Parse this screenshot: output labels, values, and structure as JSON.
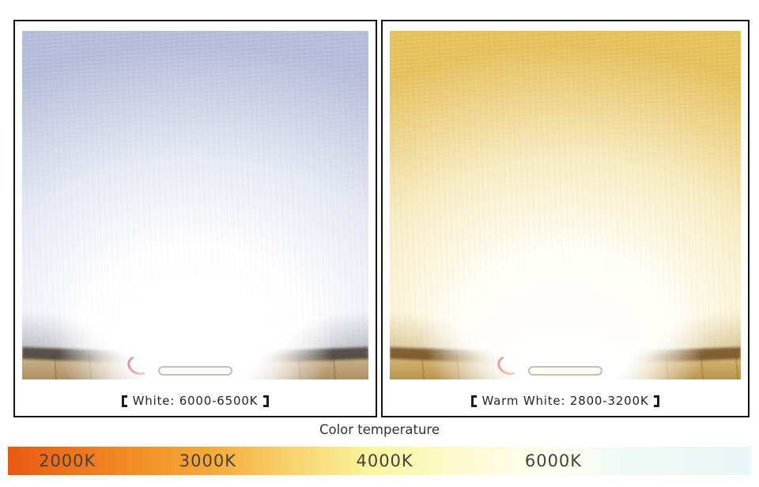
{
  "page": {
    "background": "#ffffff",
    "border_color": "#141414"
  },
  "panels": [
    {
      "id": "white",
      "caption": {
        "bracket_open": "【",
        "text": "White: 6000-6500K",
        "bracket_close": "】"
      },
      "palette": {
        "wall_edge": "#b6bdd9",
        "wall_mid": "#e7eaf4",
        "wall_light": "#ffffff",
        "floor": "#cfb68c",
        "floor_dark": "#ab9168",
        "plank_seam": "rgba(90,70,45,0.28)",
        "corner_shade": "rgba(105,105,118,0.55)",
        "shadow": "rgba(72,66,60,0.88)",
        "wire": "#a93f52",
        "fixture": "#fdfdfd",
        "glow": "#ffffff"
      }
    },
    {
      "id": "warm-white",
      "caption": {
        "bracket_open": "【",
        "text": "Warm White: 2800-3200K",
        "bracket_close": "】"
      },
      "palette": {
        "wall_edge": "#e6c05c",
        "wall_mid": "#f7ecc2",
        "wall_light": "#fffef6",
        "floor": "#dcba7c",
        "floor_dark": "#b7944f",
        "plank_seam": "rgba(130,90,30,0.3)",
        "corner_shade": "rgba(165,120,35,0.5)",
        "shadow": "rgba(115,82,38,0.88)",
        "wire": "#c8502a",
        "fixture": "#fffdf6",
        "glow": "#fffefa"
      }
    }
  ],
  "scale": {
    "title": "Color temperature",
    "label_color": "#46423a",
    "labels": [
      {
        "text": "2000K",
        "x_pct": 8.0
      },
      {
        "text": "3000K",
        "x_pct": 26.9
      },
      {
        "text": "4000K",
        "x_pct": 50.7
      },
      {
        "text": "6000K",
        "x_pct": 73.4
      }
    ],
    "gradient": [
      {
        "pos": 0,
        "color": "#e85a12"
      },
      {
        "pos": 8,
        "color": "#ee721b"
      },
      {
        "pos": 18,
        "color": "#f29128"
      },
      {
        "pos": 27,
        "color": "#f5a838"
      },
      {
        "pos": 38,
        "color": "#f8d36c"
      },
      {
        "pos": 50,
        "color": "#faf7a4"
      },
      {
        "pos": 62,
        "color": "#fcfbd4"
      },
      {
        "pos": 72,
        "color": "#fefef0"
      },
      {
        "pos": 84,
        "color": "#f0faf6"
      },
      {
        "pos": 100,
        "color": "#eaf6f7"
      }
    ]
  }
}
